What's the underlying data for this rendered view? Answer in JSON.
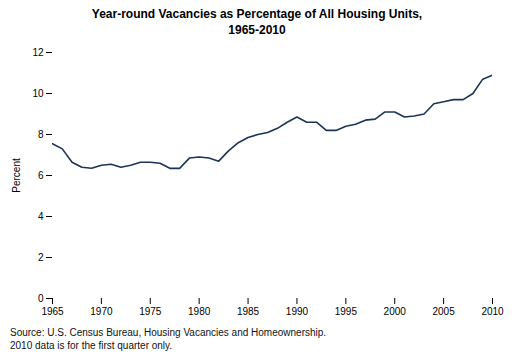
{
  "chart_data": {
    "type": "line",
    "title": "Year-round Vacancies as Percentage of All Housing Units,\n1965-2010",
    "ylabel": "Percent",
    "caption": "Source: U.S. Census Bureau, Housing Vacancies and Homeownership.\n2010 data is for the first quarter only.",
    "x": [
      1965,
      1966,
      1967,
      1968,
      1969,
      1970,
      1971,
      1972,
      1973,
      1974,
      1975,
      1976,
      1977,
      1978,
      1979,
      1980,
      1981,
      1982,
      1983,
      1984,
      1985,
      1986,
      1987,
      1988,
      1989,
      1990,
      1991,
      1992,
      1993,
      1994,
      1995,
      1996,
      1997,
      1998,
      1999,
      2000,
      2001,
      2002,
      2003,
      2004,
      2005,
      2006,
      2007,
      2008,
      2009,
      2010
    ],
    "values": [
      7.55,
      7.3,
      6.65,
      6.4,
      6.35,
      6.5,
      6.55,
      6.4,
      6.5,
      6.65,
      6.65,
      6.6,
      6.35,
      6.35,
      6.85,
      6.9,
      6.85,
      6.7,
      7.2,
      7.6,
      7.85,
      8.0,
      8.1,
      8.3,
      8.6,
      8.85,
      8.6,
      8.6,
      8.2,
      8.2,
      8.4,
      8.5,
      8.7,
      8.75,
      9.1,
      9.1,
      8.85,
      8.9,
      9.0,
      9.5,
      9.6,
      9.7,
      9.7,
      10.0,
      10.7,
      10.9
    ],
    "color": "#1C3557",
    "xlim": [
      1965,
      2010
    ],
    "xticks": [
      1965,
      1970,
      1975,
      1980,
      1985,
      1990,
      1995,
      2000,
      2005,
      2010
    ],
    "ylim": [
      0,
      12
    ],
    "yticks": [
      0,
      2,
      4,
      6,
      8,
      10,
      12
    ],
    "grid": false
  }
}
